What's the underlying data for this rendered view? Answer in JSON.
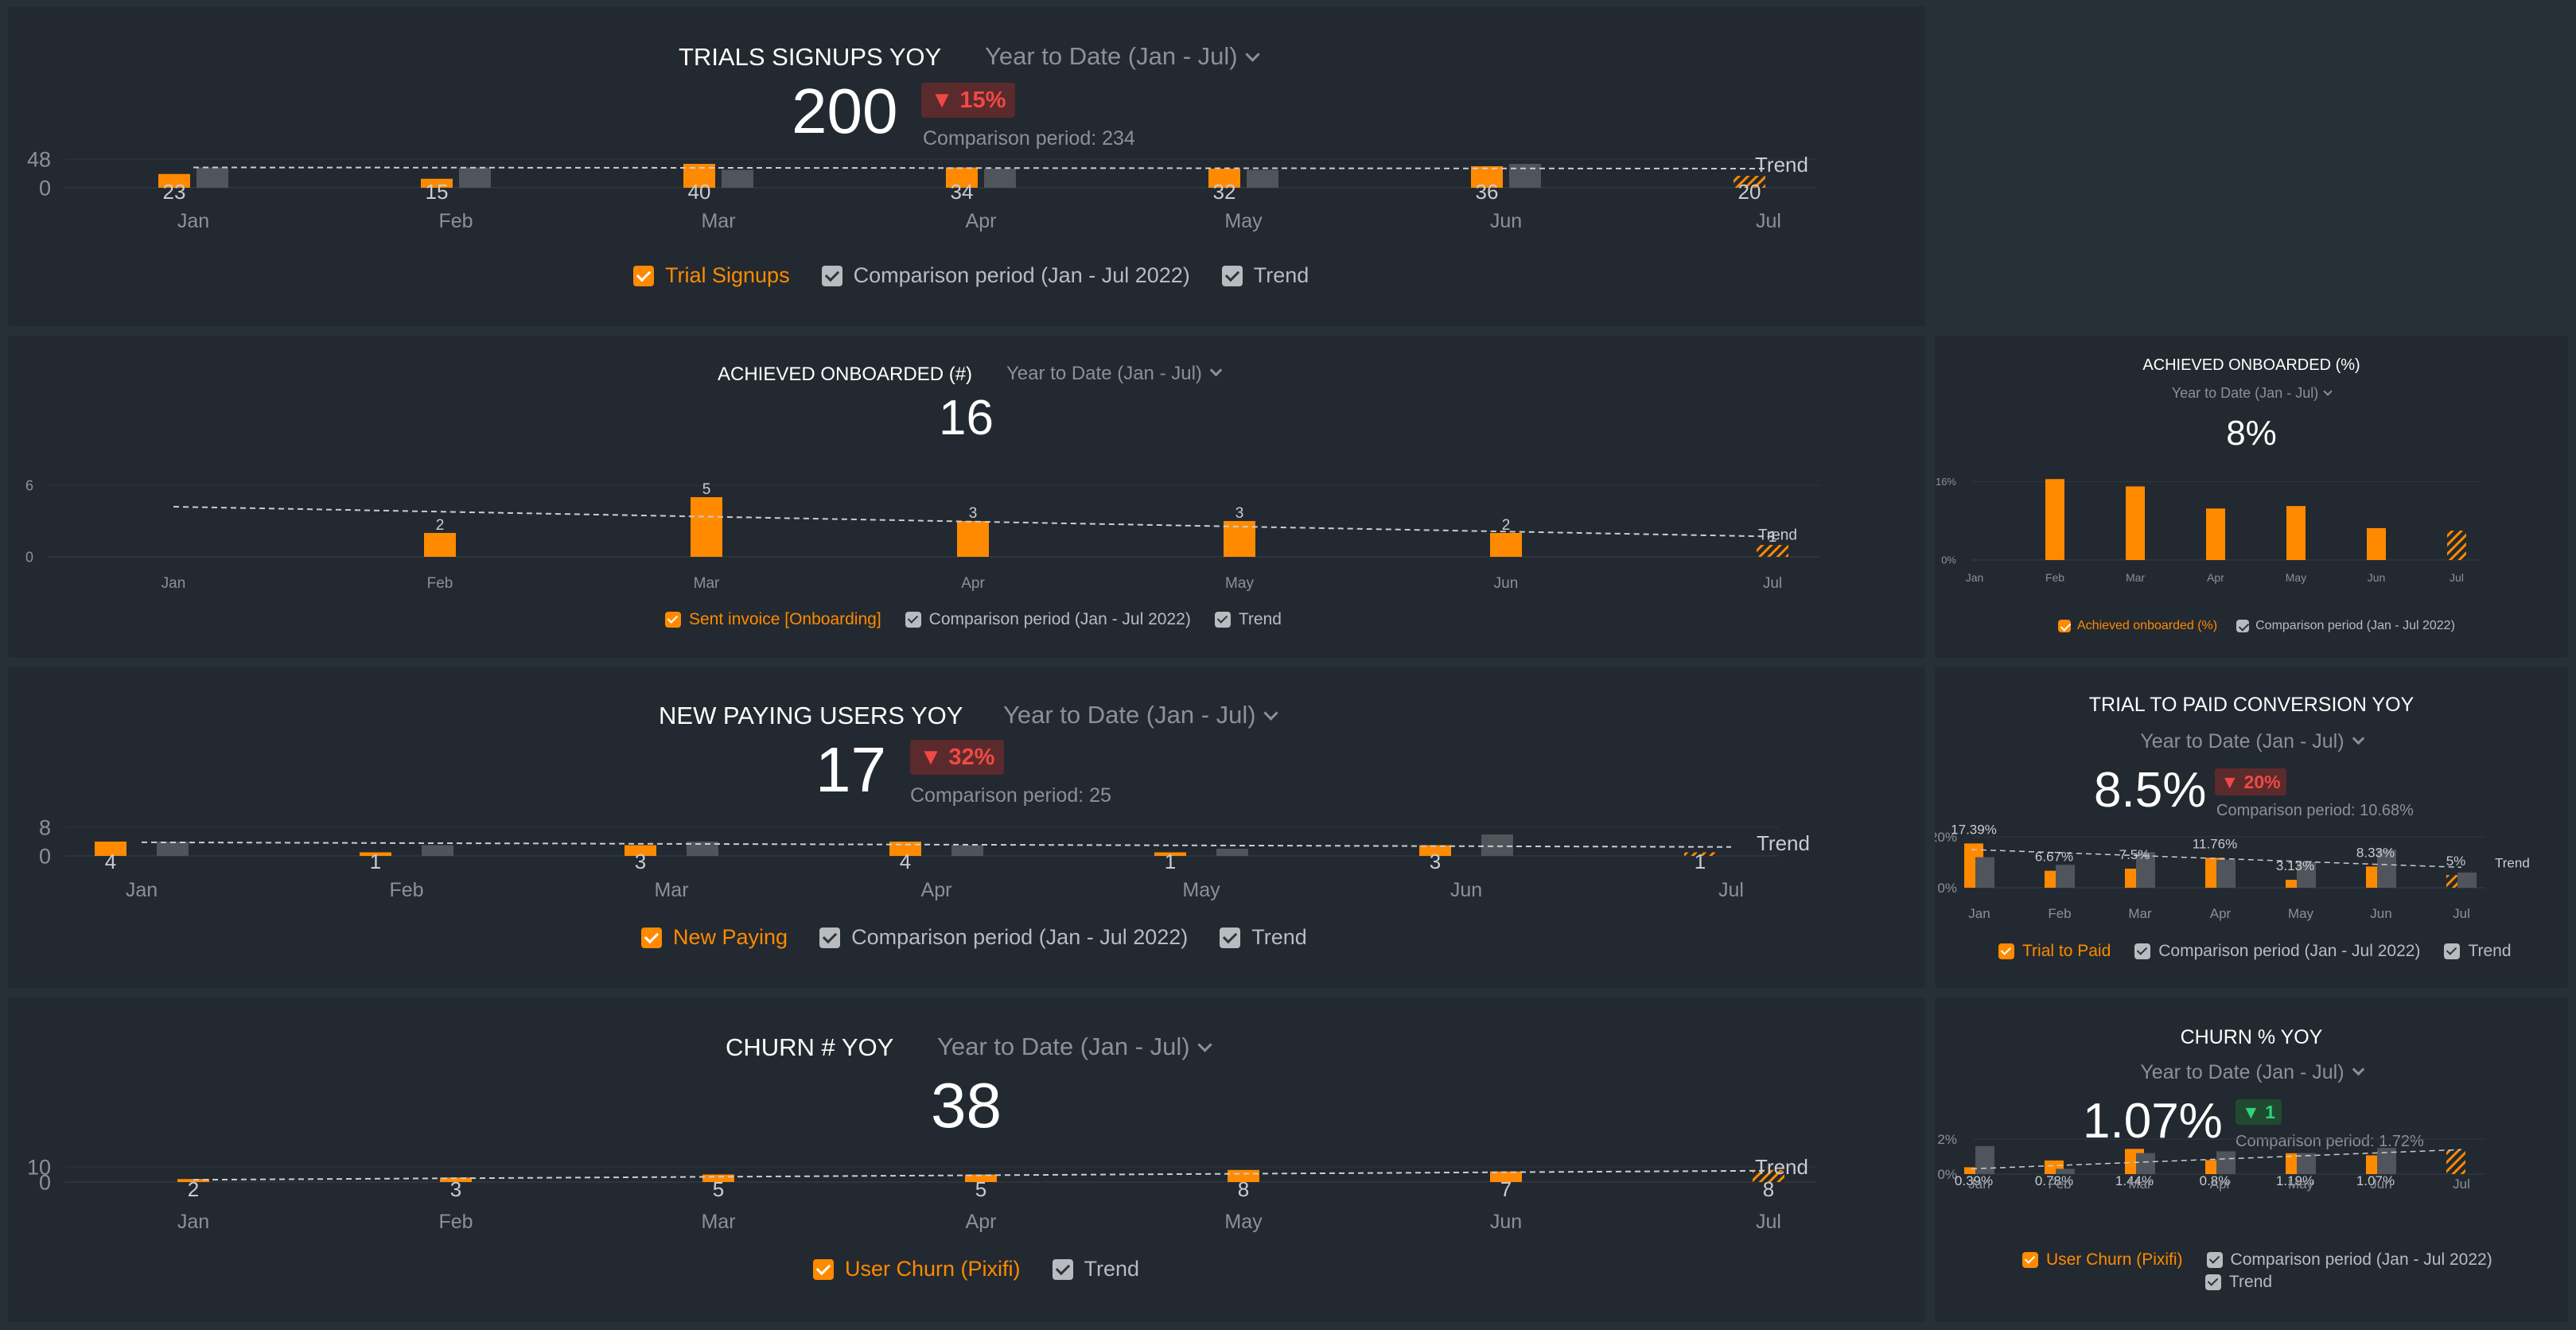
{
  "colors": {
    "bar": "#ff8a00",
    "comparison": "#50555b",
    "trend": "#c9ccd0",
    "axis": "#8b9198",
    "badge_red": "#f04a44",
    "badge_green": "#2fd27a"
  },
  "months": [
    "Jan",
    "Feb",
    "Mar",
    "Apr",
    "May",
    "Jun",
    "Jul"
  ],
  "trials": {
    "title": "TRIALS SIGNUPS YOY",
    "period": "Year to Date (Jan - Jul)",
    "value": "200",
    "badge": "▼ 15%",
    "comparison": "Comparison period: 234",
    "legend": {
      "series": "Trial Signups",
      "comparison": "Comparison period (Jan - Jul 2022)",
      "trend": "Trend"
    }
  },
  "onboarded": {
    "title": "ACHIEVED ONBOARDED (#)",
    "period": "Year to Date (Jan - Jul)",
    "value": "16",
    "legend": {
      "series": "Sent invoice [Onboarding]",
      "comparison": "Comparison period (Jan - Jul 2022)",
      "trend": "Trend"
    }
  },
  "onboarded_pct": {
    "title": "ACHIEVED ONBOARDED (%)",
    "period": "Year to Date (Jan - Jul)",
    "value": "8%",
    "legend": {
      "series": "Achieved onboarded (%)",
      "comparison": "Comparison period (Jan - Jul 2022)"
    }
  },
  "paying": {
    "title": "NEW PAYING USERS YOY",
    "period": "Year to Date (Jan - Jul)",
    "value": "17",
    "badge": "▼ 32%",
    "comparison": "Comparison period: 25",
    "legend": {
      "series": "New Paying",
      "comparison": "Comparison period (Jan - Jul 2022)",
      "trend": "Trend"
    }
  },
  "conversion": {
    "title": "TRIAL TO PAID CONVERSION YOY",
    "period": "Year to Date (Jan - Jul)",
    "value": "8.5%",
    "badge": "▼ 20%",
    "comparison": "Comparison period: 10.68%",
    "legend": {
      "series": "Trial to Paid",
      "comparison": "Comparison period (Jan - Jul 2022)",
      "trend": "Trend"
    }
  },
  "churn": {
    "title": "CHURN # YOY",
    "period": "Year to Date (Jan - Jul)",
    "value": "38",
    "legend": {
      "series": "User Churn (Pixifi)",
      "trend": "Trend"
    }
  },
  "churn_pct": {
    "title": "CHURN % YOY",
    "period": "Year to Date (Jan - Jul)",
    "value": "1.07%",
    "badge": "▼ 1",
    "comparison": "Comparison period: 1.72%",
    "legend": {
      "series": "User Churn (Pixifi)",
      "comparison": "Comparison period (Jan - Jul 2022)",
      "trend": "Trend"
    }
  },
  "chart_data": [
    {
      "id": "trials",
      "type": "bar",
      "categories": [
        "Jan",
        "Feb",
        "Mar",
        "Apr",
        "May",
        "Jun",
        "Jul"
      ],
      "series": [
        {
          "name": "Trial Signups",
          "values": [
            23,
            15,
            40,
            34,
            32,
            36,
            20
          ],
          "labels": [
            "23",
            "15",
            "40",
            "34",
            "32",
            "36",
            "20"
          ]
        },
        {
          "name": "Comparison period (Jan - Jul 2022)",
          "values": [
            34,
            34,
            30,
            32,
            30,
            40,
            0
          ]
        }
      ],
      "trend": {
        "name": "Trend",
        "start": 34,
        "end": 32
      },
      "ytick_labels": [
        "48",
        "0"
      ],
      "yticks": [
        48,
        0
      ],
      "ymax": 48,
      "partial_last": true
    },
    {
      "id": "onboarded",
      "type": "bar",
      "categories": [
        "Jan",
        "Feb",
        "Mar",
        "Apr",
        "May",
        "Jun",
        "Jul"
      ],
      "series": [
        {
          "name": "Sent invoice [Onboarding]",
          "values": [
            0,
            2,
            5,
            3,
            3,
            2,
            1
          ],
          "labels": [
            "",
            "2",
            "5",
            "3",
            "3",
            "2",
            "1"
          ]
        }
      ],
      "trend": {
        "name": "Trend",
        "start": 4.2,
        "end": 1.7
      },
      "ytick_labels": [
        "6",
        "0"
      ],
      "yticks": [
        6,
        0
      ],
      "ymax": 6,
      "partial_last": true
    },
    {
      "id": "onboarded_pct",
      "type": "bar",
      "categories": [
        "Jan",
        "Feb",
        "Mar",
        "Apr",
        "May",
        "Jun",
        "Jul"
      ],
      "series": [
        {
          "name": "Achieved onboarded (%)",
          "values": [
            0,
            16.5,
            15,
            10.5,
            11,
            6.5,
            6
          ]
        }
      ],
      "ytick_labels": [
        "16%",
        "0%"
      ],
      "yticks": [
        16,
        0
      ],
      "ymax": 18,
      "partial_last": true
    },
    {
      "id": "paying",
      "type": "bar",
      "categories": [
        "Jan",
        "Feb",
        "Mar",
        "Apr",
        "May",
        "Jun",
        "Jul"
      ],
      "series": [
        {
          "name": "New Paying",
          "values": [
            4,
            1,
            3,
            4,
            1,
            3,
            1
          ],
          "labels": [
            "4",
            "1",
            "3",
            "4",
            "1",
            "3",
            "1"
          ]
        },
        {
          "name": "Comparison period (Jan - Jul 2022)",
          "values": [
            4,
            3,
            4,
            3,
            2,
            6,
            0
          ]
        }
      ],
      "trend": {
        "name": "Trend",
        "start": 3.8,
        "end": 2.5
      },
      "ytick_labels": [
        "8",
        "0"
      ],
      "yticks": [
        8,
        0
      ],
      "ymax": 8,
      "partial_last": true
    },
    {
      "id": "conversion",
      "type": "bar",
      "categories": [
        "Jan",
        "Feb",
        "Mar",
        "Apr",
        "May",
        "Jun",
        "Jul"
      ],
      "series": [
        {
          "name": "Trial to Paid",
          "values": [
            17.39,
            6.67,
            7.5,
            11.76,
            3.13,
            8.33,
            5
          ],
          "labels": [
            "17.39%",
            "6.67%",
            "7.5%",
            "11.76%",
            "3.13%",
            "8.33%",
            "5%"
          ]
        },
        {
          "name": "Comparison period (Jan - Jul 2022)",
          "values": [
            12,
            9,
            14,
            11,
            10,
            15,
            6
          ]
        }
      ],
      "trend": {
        "name": "Trend",
        "start": 15,
        "end": 8
      },
      "ytick_labels": [
        "20%",
        "0%"
      ],
      "yticks": [
        20,
        0
      ],
      "ymax": 20,
      "partial_last": true
    },
    {
      "id": "churn",
      "type": "bar",
      "categories": [
        "Jan",
        "Feb",
        "Mar",
        "Apr",
        "May",
        "Jun",
        "Jul"
      ],
      "series": [
        {
          "name": "User Churn (Pixifi)",
          "values": [
            2,
            3,
            5,
            5,
            8,
            7,
            8
          ],
          "labels": [
            "2",
            "3",
            "5",
            "5",
            "8",
            "7",
            "8"
          ]
        }
      ],
      "trend": {
        "name": "Trend",
        "start": 1.5,
        "end": 7.5
      },
      "ytick_labels": [
        "10",
        "0"
      ],
      "yticks": [
        10,
        0
      ],
      "ymax": 10,
      "partial_last": true
    },
    {
      "id": "churn_pct",
      "type": "bar",
      "categories": [
        "Jan",
        "Feb",
        "Mar",
        "Apr",
        "May",
        "Jun",
        "Jul"
      ],
      "series": [
        {
          "name": "User Churn (Pixifi)",
          "values": [
            0.39,
            0.78,
            1.44,
            0.8,
            1.19,
            1.07,
            1.4
          ],
          "labels": [
            "0.39%",
            "0.78%",
            "1.44%",
            "0.8%",
            "1.19%",
            "1.07%",
            ""
          ]
        },
        {
          "name": "Comparison period (Jan - Jul 2022)",
          "values": [
            1.6,
            0.3,
            1.2,
            1.3,
            1.2,
            1.5,
            0
          ]
        }
      ],
      "trend": {
        "name": "Trend",
        "start": 0.3,
        "end": 1.4
      },
      "ytick_labels": [
        "2%",
        "0%"
      ],
      "yticks": [
        2,
        0
      ],
      "ymax": 2,
      "partial_last": true
    }
  ]
}
